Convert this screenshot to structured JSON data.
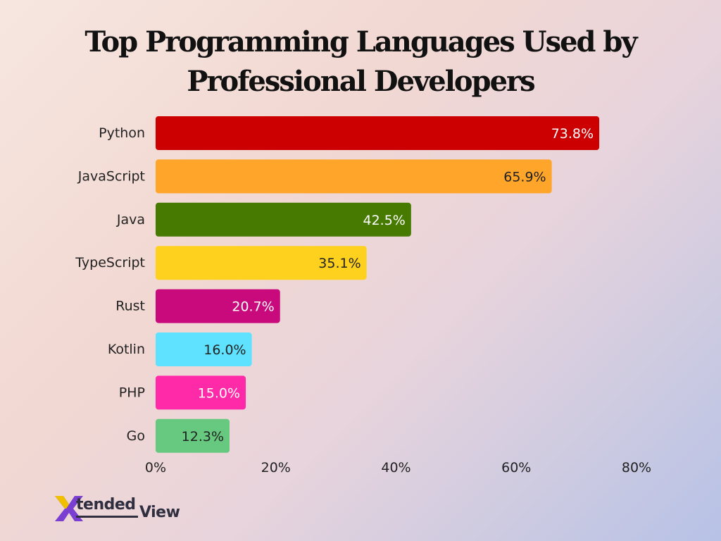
{
  "chart_data": {
    "type": "bar",
    "orientation": "horizontal",
    "title_lines": [
      "Top Programming Languages Used by",
      "Professional Developers"
    ],
    "categories": [
      "Python",
      "JavaScript",
      "Java",
      "TypeScript",
      "Rust",
      "Kotlin",
      "PHP",
      "Go"
    ],
    "values": [
      73.8,
      65.9,
      42.5,
      35.1,
      20.7,
      16.0,
      15.0,
      12.3
    ],
    "value_labels": [
      "73.8%",
      "65.9%",
      "42.5%",
      "35.1%",
      "20.7%",
      "16.0%",
      "15.0%",
      "12.3%"
    ],
    "colors": [
      "#cc0000",
      "#ffa52a",
      "#467a00",
      "#ffd11f",
      "#c90a7d",
      "#5ee2ff",
      "#ff2aa8",
      "#66c97f"
    ],
    "label_colors": [
      "#ffffff",
      "#222222",
      "#ffffff",
      "#222222",
      "#ffffff",
      "#222222",
      "#ffffff",
      "#222222"
    ],
    "xlim": [
      0,
      80
    ],
    "xticks": [
      0,
      20,
      40,
      60,
      80
    ],
    "xtick_labels": [
      "0%",
      "20%",
      "40%",
      "60%",
      "80%"
    ],
    "xlabel": "",
    "ylabel": "",
    "grid": false,
    "legend": "none"
  },
  "branding": {
    "logo_mark": "X",
    "logo_text_1": "tended",
    "logo_text_2": "View"
  }
}
